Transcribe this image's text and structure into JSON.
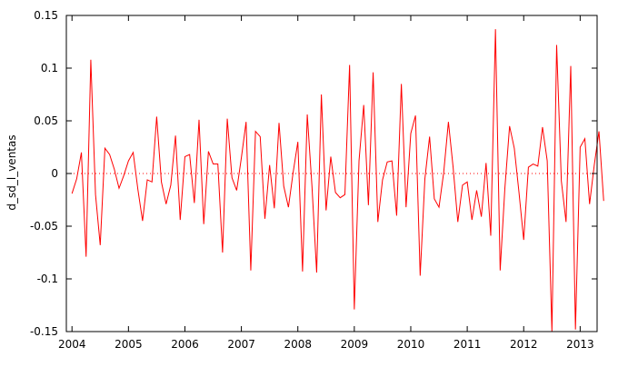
{
  "chart_data": {
    "type": "line",
    "title": "",
    "xlabel": "",
    "ylabel": "d_sd_l_ventas",
    "xlim": [
      2003.9,
      2013.3
    ],
    "ylim": [
      -0.15,
      0.15
    ],
    "x_ticks": [
      2004,
      2005,
      2006,
      2007,
      2008,
      2009,
      2010,
      2011,
      2012,
      2013
    ],
    "x_tick_labels": [
      "2004",
      "2005",
      "2006",
      "2007",
      "2008",
      "2009",
      "2010",
      "2011",
      "2012",
      "2013"
    ],
    "y_ticks": [
      -0.15,
      -0.1,
      -0.05,
      0,
      0.05,
      0.1,
      0.15
    ],
    "y_tick_labels": [
      "-0.15",
      "-0.1",
      "-0.05",
      "0",
      "0.05",
      "0.1",
      "0.15"
    ],
    "zero_line": true,
    "grid": false,
    "line_color": "#ff0000",
    "zero_line_color": "#ff0000",
    "x_start": "2004-01",
    "frequency": "monthly",
    "series": [
      {
        "values": [
          -0.019,
          -0.005,
          0.02,
          -0.079,
          0.108,
          -0.02,
          -0.068,
          0.024,
          0.018,
          0.004,
          -0.014,
          -0.002,
          0.012,
          0.02,
          -0.015,
          -0.045,
          -0.006,
          -0.008,
          0.054,
          -0.008,
          -0.029,
          -0.011,
          0.036,
          -0.044,
          0.016,
          0.018,
          -0.028,
          0.051,
          -0.048,
          0.021,
          0.009,
          0.009,
          -0.075,
          0.052,
          -0.004,
          -0.016,
          0.015,
          0.049,
          -0.092,
          0.04,
          0.035,
          -0.043,
          0.008,
          -0.033,
          0.048,
          -0.012,
          -0.032,
          0.001,
          0.03,
          -0.093,
          0.056,
          -0.012,
          -0.094,
          0.075,
          -0.035,
          0.016,
          -0.018,
          -0.023,
          -0.02,
          0.103,
          -0.129,
          0.012,
          0.065,
          -0.03,
          0.096,
          -0.046,
          -0.006,
          0.011,
          0.012,
          -0.04,
          0.085,
          -0.032,
          0.038,
          0.055,
          -0.097,
          -0.005,
          0.035,
          -0.024,
          -0.032,
          0.001,
          0.049,
          0.006,
          -0.046,
          -0.011,
          -0.008,
          -0.044,
          -0.016,
          -0.041,
          0.01,
          -0.059,
          0.137,
          -0.092,
          -0.014,
          0.045,
          0.024,
          -0.018,
          -0.063,
          0.006,
          0.009,
          0.007,
          0.044,
          0.012,
          -0.15,
          0.122,
          -0.007,
          -0.046,
          0.102,
          -0.148,
          0.025,
          0.033,
          -0.029,
          0.008,
          0.04,
          -0.026
        ]
      }
    ]
  }
}
